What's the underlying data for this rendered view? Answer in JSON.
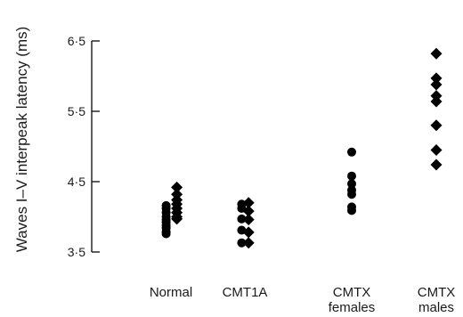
{
  "chart_data": {
    "type": "scatter",
    "title": "",
    "xlabel": "",
    "ylabel": "Waves I–V interpeak latency (ms)",
    "ylim": [
      3.5,
      6.5
    ],
    "yticks": [
      "3·5",
      "4·5",
      "5·5",
      "6·5"
    ],
    "categories": [
      {
        "lines": [
          "Normal"
        ]
      },
      {
        "lines": [
          "CMT1A"
        ]
      },
      {
        "lines": [
          "CMTX",
          "females"
        ]
      },
      {
        "lines": [
          "CMTX",
          "males"
        ]
      }
    ],
    "series": [
      {
        "category_index": 0,
        "marker": "circle",
        "offset": -0.45,
        "values": [
          4.16,
          4.12,
          4.06,
          4.0,
          3.96,
          3.92,
          3.88,
          3.84,
          3.79,
          3.76
        ]
      },
      {
        "category_index": 0,
        "marker": "diamond",
        "offset": 0.55,
        "values": [
          4.42,
          4.32,
          4.24,
          4.18,
          4.12,
          4.06,
          4.0,
          3.97
        ]
      },
      {
        "category_index": 1,
        "marker": "circle",
        "offset": -0.3,
        "values": [
          4.18,
          4.12,
          3.97,
          3.81,
          3.63
        ]
      },
      {
        "category_index": 1,
        "marker": "diamond",
        "offset": 0.35,
        "values": [
          4.2,
          4.08,
          3.96,
          3.78,
          3.63
        ]
      },
      {
        "category_index": 2,
        "marker": "circle",
        "offset": 0,
        "values": [
          4.92,
          4.58,
          4.47,
          4.38,
          4.32,
          4.14,
          4.09
        ]
      },
      {
        "category_index": 3,
        "marker": "diamond",
        "offset": 0,
        "values": [
          6.32,
          5.97,
          5.88,
          5.72,
          5.64,
          5.3,
          4.95,
          4.74
        ]
      }
    ]
  }
}
